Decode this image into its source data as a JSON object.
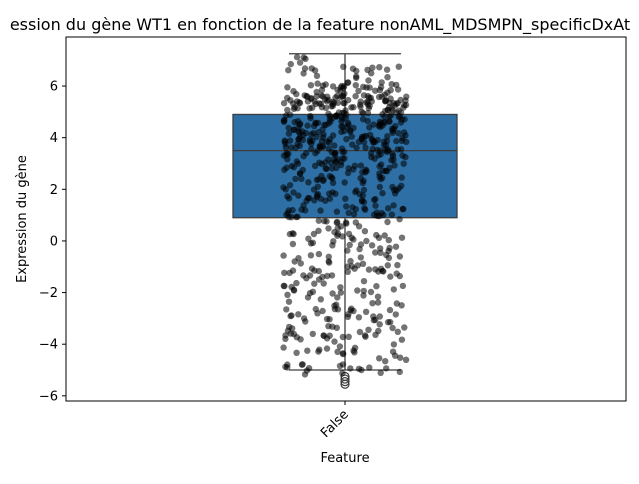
{
  "chart_data": {
    "type": "box",
    "title": "ession du gène WT1 en fonction de la feature nonAML_MDSMPN_specificDxAt",
    "xlabel": "Feature",
    "ylabel": "Expression du gène",
    "categories": [
      "False"
    ],
    "ylim": [
      -6.2,
      7.9
    ],
    "yticks": [
      -6,
      -4,
      -2,
      0,
      2,
      4,
      6
    ],
    "grid": false,
    "legend": "none",
    "box": {
      "category": "False",
      "q1": 0.9,
      "median": 3.5,
      "q3": 4.9,
      "whisker_low": -5.0,
      "whisker_high": 7.25,
      "outliers": [
        -5.25,
        -5.35,
        -5.45,
        -5.55
      ]
    },
    "points": {
      "count": 700,
      "jitter_range": [
        -0.22,
        0.22
      ],
      "distribution": [
        {
          "from": 4.0,
          "to": 6.0,
          "share": 0.31
        },
        {
          "from": 2.5,
          "to": 4.0,
          "share": 0.19
        },
        {
          "from": 6.0,
          "to": 7.25,
          "share": 0.05
        },
        {
          "from": 0.9,
          "to": 2.5,
          "share": 0.13
        },
        {
          "from": -1.0,
          "to": 0.9,
          "share": 0.1
        },
        {
          "from": -3.0,
          "to": -1.0,
          "share": 0.11
        },
        {
          "from": -5.2,
          "to": -3.0,
          "share": 0.11
        }
      ]
    },
    "colors": {
      "box_fill": "#2e70a5",
      "box_edge": "#3d3d3d",
      "point": "#000000",
      "point_opacity": 0.55
    }
  }
}
